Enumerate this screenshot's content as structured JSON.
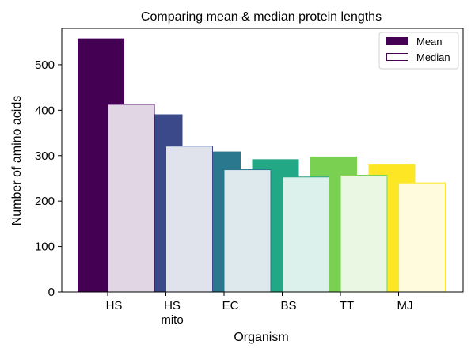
{
  "chart_data": {
    "type": "bar",
    "title": "Comparing mean & median protein lengths",
    "xlabel": "Organism",
    "ylabel": "Number of amino acids",
    "categories": [
      {
        "lines": [
          "HS"
        ]
      },
      {
        "lines": [
          "HS",
          "mito"
        ]
      },
      {
        "lines": [
          "EC"
        ]
      },
      {
        "lines": [
          "BS"
        ]
      },
      {
        "lines": [
          "TT"
        ]
      },
      {
        "lines": [
          "MJ"
        ]
      }
    ],
    "ylim": [
      0,
      580
    ],
    "yticks": [
      0,
      100,
      200,
      300,
      400,
      500
    ],
    "grid": false,
    "legend_position": "top-right",
    "series": [
      {
        "name": "Mean",
        "style": "filled",
        "values": [
          558,
          391,
          309,
          292,
          298,
          282
        ],
        "colors": [
          "#440154",
          "#3b4889",
          "#29788e",
          "#22a884",
          "#7ad151",
          "#fde725"
        ]
      },
      {
        "name": "Median",
        "style": "outline",
        "values": [
          413,
          321,
          269,
          253,
          257,
          240
        ],
        "colors": [
          "#440154",
          "#3b4889",
          "#29788e",
          "#22a884",
          "#7ad151",
          "#fde725"
        ]
      }
    ],
    "legend_colors": {
      "Mean": "#440154",
      "Median": "#440154"
    }
  }
}
